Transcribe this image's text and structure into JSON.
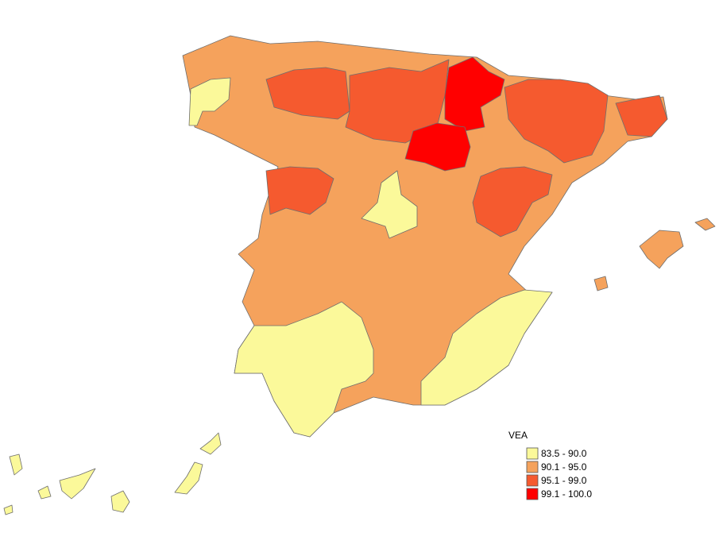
{
  "legend": {
    "title": "VEA",
    "items": [
      {
        "label": "83.5 - 90.0",
        "color": "#fbf99a"
      },
      {
        "label": "90.1 - 95.0",
        "color": "#f5a25c"
      },
      {
        "label": "95.1 - 99.0",
        "color": "#f55a2f"
      },
      {
        "label": "99.1 - 100.0",
        "color": "#ff0000"
      }
    ]
  }
}
